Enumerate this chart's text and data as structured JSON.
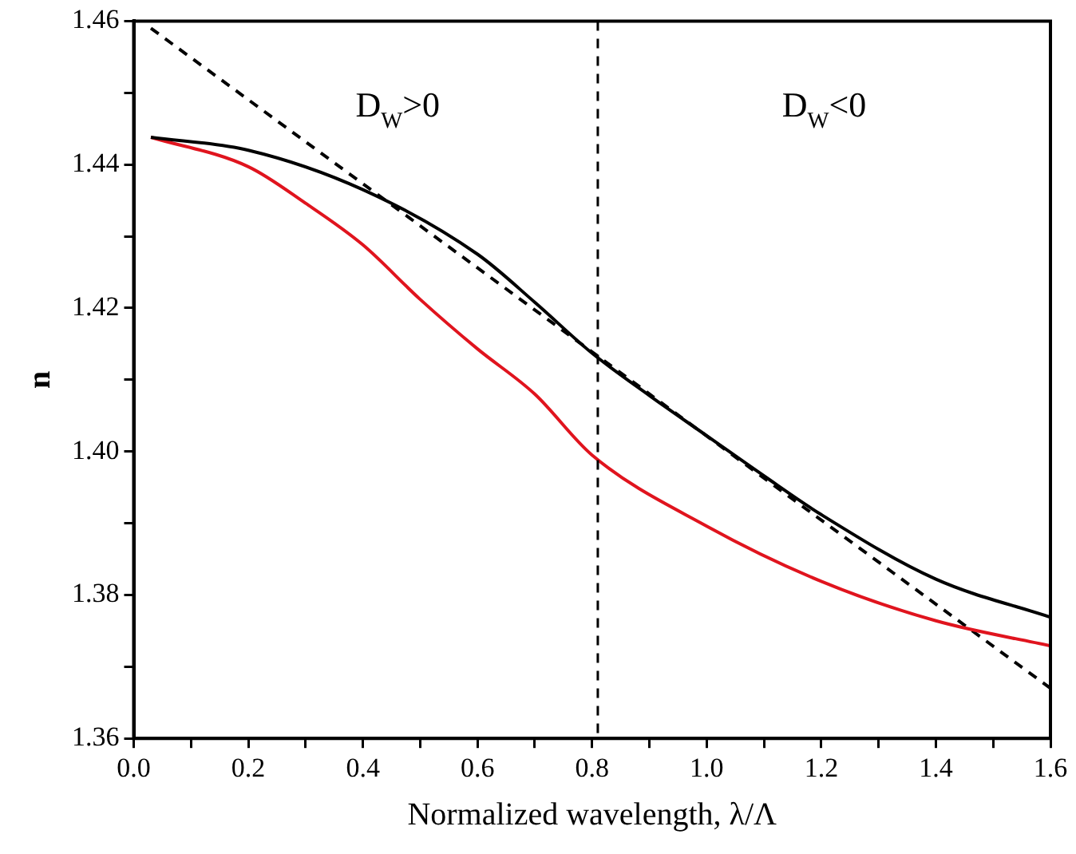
{
  "chart_data": {
    "type": "line",
    "xlabel": "Normalized wavelength, λ/Λ",
    "ylabel": "n",
    "xlim": [
      0,
      1.6
    ],
    "ylim": [
      1.36,
      1.46
    ],
    "xticks": [
      {
        "value": 0,
        "label": "0.0"
      },
      {
        "value": 0.1,
        "label": null
      },
      {
        "value": 0.2,
        "label": "0.2"
      },
      {
        "value": 0.3,
        "label": null
      },
      {
        "value": 0.4,
        "label": "0.4"
      },
      {
        "value": 0.5,
        "label": null
      },
      {
        "value": 0.6,
        "label": "0.6"
      },
      {
        "value": 0.7,
        "label": null
      },
      {
        "value": 0.8,
        "label": "0.8"
      },
      {
        "value": 0.9,
        "label": null
      },
      {
        "value": 1,
        "label": "1.0"
      },
      {
        "value": 1.1,
        "label": null
      },
      {
        "value": 1.2,
        "label": "1.2"
      },
      {
        "value": 1.3,
        "label": null
      },
      {
        "value": 1.4,
        "label": "1.4"
      },
      {
        "value": 1.5,
        "label": null
      },
      {
        "value": 1.6,
        "label": "1.6"
      }
    ],
    "yticks": [
      {
        "value": 1.36,
        "label": "1.36"
      },
      {
        "value": 1.37,
        "label": null
      },
      {
        "value": 1.38,
        "label": "1.38"
      },
      {
        "value": 1.39,
        "label": null
      },
      {
        "value": 1.4,
        "label": "1.40"
      },
      {
        "value": 1.41,
        "label": null
      },
      {
        "value": 1.42,
        "label": "1.42"
      },
      {
        "value": 1.43,
        "label": null
      },
      {
        "value": 1.44,
        "label": "1.44"
      },
      {
        "value": 1.45,
        "label": null
      },
      {
        "value": 1.46,
        "label": "1.46"
      }
    ],
    "series": [
      {
        "color": "#000000",
        "x": [
          0.03,
          0.2,
          0.4,
          0.6,
          0.7,
          0.8,
          0.9,
          1.0,
          1.1,
          1.2,
          1.4,
          1.6
        ],
        "values": [
          1.4438,
          1.442,
          1.4365,
          1.4275,
          1.4208,
          1.4137,
          1.4078,
          1.4022,
          1.3966,
          1.3912,
          1.3822,
          1.3769
        ]
      },
      {
        "color": "#e0141e",
        "x": [
          0.03,
          0.2,
          0.3,
          0.4,
          0.5,
          0.6,
          0.7,
          0.8,
          1.0,
          1.2,
          1.4,
          1.6
        ],
        "values": [
          1.4438,
          1.4397,
          1.4346,
          1.4288,
          1.4212,
          1.4143,
          1.408,
          1.3995,
          1.3896,
          1.3819,
          1.3764,
          1.3729
        ]
      },
      {
        "color": "#000000",
        "line_style": "dashed",
        "x": [
          0.03,
          1.6
        ],
        "values": [
          1.459,
          1.367
        ]
      }
    ],
    "ref_lines": [
      {
        "axis": "x",
        "value": 0.81,
        "line_style": "dashed",
        "color": "#000000"
      }
    ],
    "annotations": [
      "D$_{W}$>0",
      "D$_{W}$<0"
    ],
    "grid": false,
    "legend": false,
    "marker": "none"
  }
}
